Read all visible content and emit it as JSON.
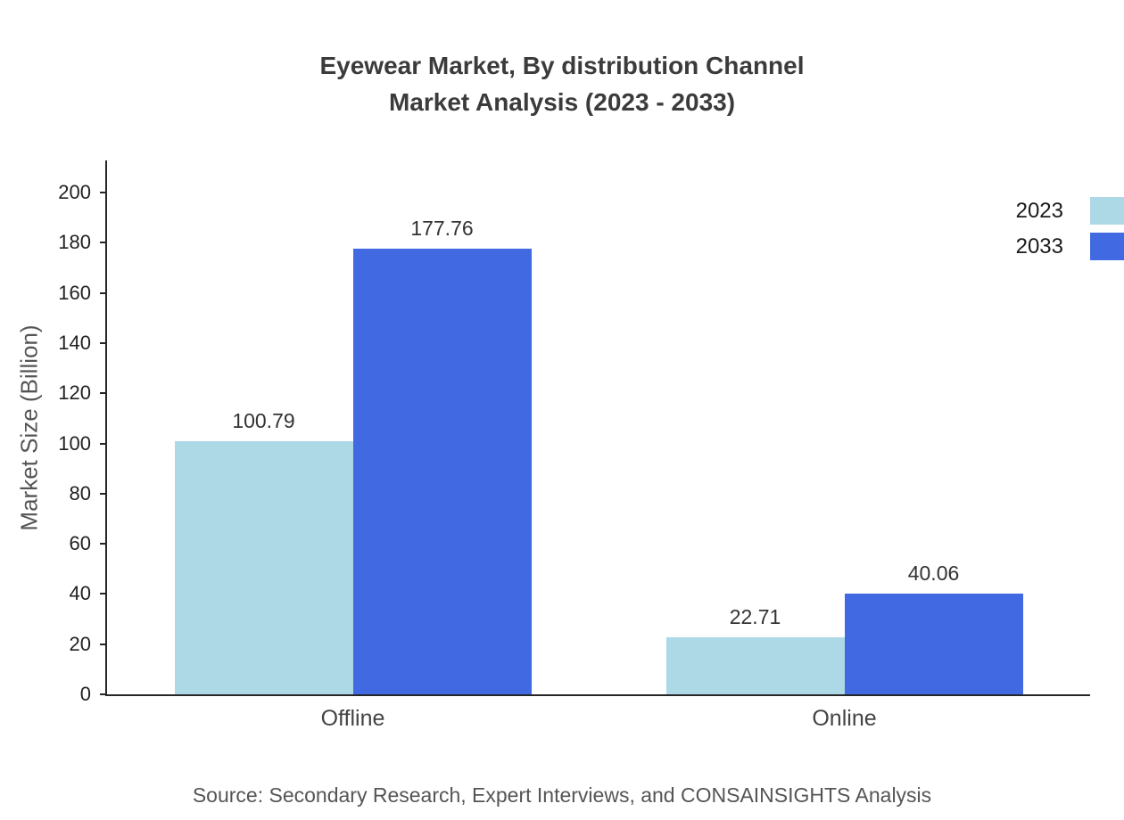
{
  "title": {
    "line1": "Eyewear Market, By distribution Channel",
    "line2": "Market Analysis (2023 - 2033)"
  },
  "source": "Source: Secondary Research, Expert Interviews, and CONSAINSIGHTS Analysis",
  "chart_data": {
    "type": "bar",
    "title": "Eyewear Market, By distribution Channel Market Analysis (2023 - 2033)",
    "categories": [
      "Offline",
      "Online"
    ],
    "series": [
      {
        "name": "2023",
        "color": "#ADD8E6",
        "values": [
          100.79,
          22.71
        ]
      },
      {
        "name": "2033",
        "color": "#4169E1",
        "values": [
          177.76,
          40.06
        ]
      }
    ],
    "xlabel": "",
    "ylabel": "Market Size (Billion)",
    "ylim": [
      0,
      200
    ],
    "yticks": [
      0,
      20,
      40,
      60,
      80,
      100,
      120,
      140,
      160,
      180,
      200
    ],
    "grid": false,
    "legend_position": "top-right",
    "colors": {
      "series_2023": "#ADD8E6",
      "series_2033": "#4169E1",
      "axis": "#262626"
    }
  }
}
